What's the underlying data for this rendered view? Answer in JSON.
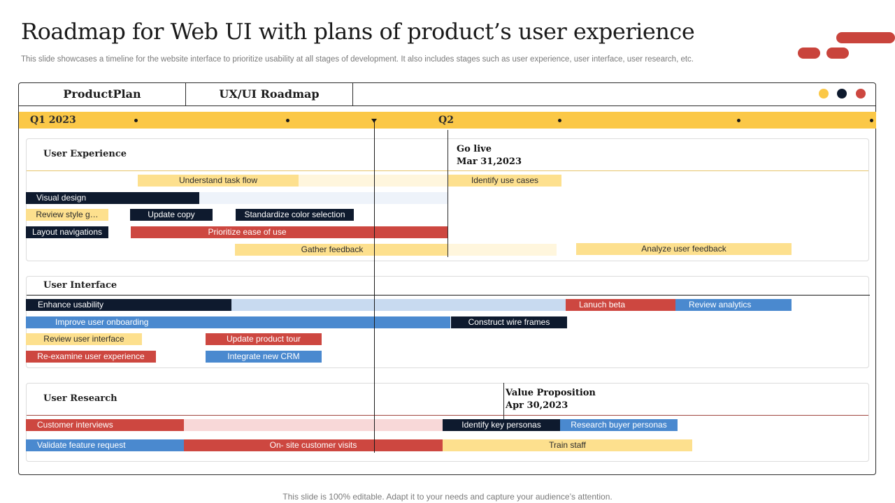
{
  "slide": {
    "title": "Roadmap for Web UI with plans of product’s user experience",
    "subtitle": "This slide showcases a timeline for the website interface to prioritize usability at all stages of development. It also includes stages such as user experience, user interface, user research, etc.",
    "footer": "This slide is 100% editable. Adapt it to your needs and capture your audience’s attention."
  },
  "header": {
    "product_plan": "ProductPlan",
    "roadmap": "UX/UI Roadmap",
    "dot_colors": [
      "#fbc847",
      "#0e1a2e",
      "#cd4740"
    ]
  },
  "timeline": {
    "q1": "Q1 2023",
    "q2": "Q2"
  },
  "milestones": {
    "go_live": {
      "name": "Go live",
      "date": "Mar 31,2023"
    },
    "value_prop": {
      "name": "Value Proposition",
      "date": "Apr 30,2023"
    }
  },
  "sections": {
    "ux": {
      "label": "User Experience",
      "bars": [
        "Understand task flow",
        "Identify use cases",
        "Visual design",
        "Review style g…",
        "Update copy",
        "Standardize color selection",
        "Layout navigations",
        "Prioritize ease of use",
        "Gather feedback",
        "Analyze  user feedback"
      ]
    },
    "ui": {
      "label": "User Interface",
      "bars": [
        "Enhance usability",
        "Lanuch beta",
        "Review analytics",
        "Improve user onboarding",
        "Construct wire frames",
        "Review user interface",
        "Update product tour",
        "Re-examine user experience",
        "Integrate new CRM"
      ]
    },
    "ur": {
      "label": "User Research",
      "bars": [
        "Customer interviews",
        "Identify key personas",
        "Research buyer personas",
        "Validate feature request",
        "On- site customer visits",
        "Train staff"
      ]
    }
  },
  "colors": {
    "yellow": "#fbc847",
    "navy": "#0e1a2e",
    "red": "#cd4740",
    "blue": "#4a89cf"
  }
}
